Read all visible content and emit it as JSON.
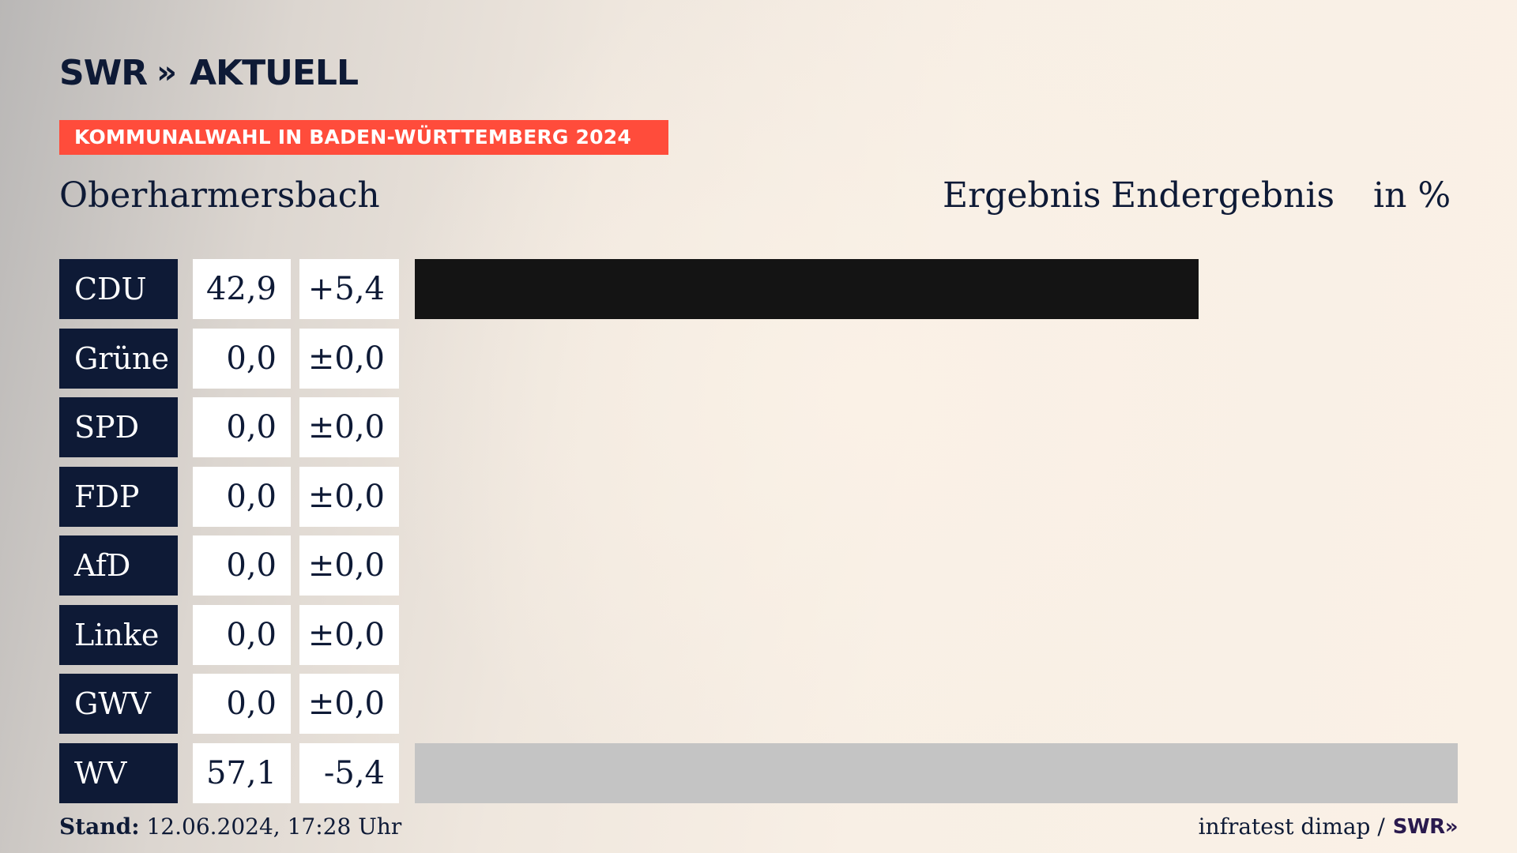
{
  "brand": {
    "logo_text": "SWR",
    "logo_chevrons": "»",
    "logo_suffix": "AKTUELL"
  },
  "banner": {
    "text": "KOMMUNALWAHL IN BADEN-WÜRTTEMBERG 2024",
    "color": "#ff4c3b"
  },
  "place": "Oberharmersbach",
  "headers": {
    "ergebnis": "Ergebnis",
    "endergebnis": "Endergebnis",
    "unit": "in %"
  },
  "chart_data": {
    "type": "bar",
    "orientation": "horizontal",
    "title": "",
    "categories": [
      "CDU",
      "Grüne",
      "SPD",
      "FDP",
      "AfD",
      "Linke",
      "GWV",
      "WV"
    ],
    "series": [
      {
        "values": [
          42.9,
          0.0,
          0.0,
          0.0,
          0.0,
          0.0,
          0.0,
          57.1
        ]
      }
    ],
    "value_labels": [
      "42,9",
      "0,0",
      "0,0",
      "0,0",
      "0,0",
      "0,0",
      "0,0",
      "57,1"
    ],
    "diff_labels": [
      "+5,4",
      "±0,0",
      "±0,0",
      "±0,0",
      "±0,0",
      "±0,0",
      "±0,0",
      "-5,4"
    ],
    "bar_colors": [
      "#141414",
      "#1aa037",
      "#e3000f",
      "#ffed00",
      "#009ee0",
      "#be3075",
      "#8b8b8b",
      "#c4c4c4"
    ],
    "xlim": [
      0,
      57.1
    ],
    "grid": false
  },
  "footer": {
    "stand_label": "Stand:",
    "stand_value": "12.06.2024, 17:28 Uhr",
    "source": "infratest dimap /",
    "source_logo": "SWR»"
  }
}
